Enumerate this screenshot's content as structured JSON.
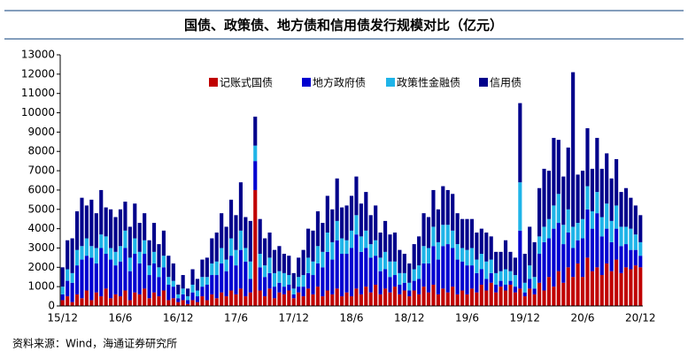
{
  "chart_data": {
    "type": "stacked-bar",
    "title": "国债、政策债、地方债和信用债发行规模对比（亿元）",
    "source": "资料来源：Wind，海通证券研究所",
    "categories": [
      "15/12",
      null,
      null,
      null,
      null,
      null,
      null,
      null,
      null,
      null,
      null,
      null,
      "16/6",
      null,
      null,
      null,
      null,
      null,
      null,
      null,
      null,
      null,
      null,
      null,
      "16/12",
      null,
      null,
      null,
      null,
      null,
      null,
      null,
      null,
      null,
      null,
      null,
      "17/6",
      null,
      null,
      null,
      null,
      null,
      null,
      null,
      null,
      null,
      null,
      null,
      "17/12",
      null,
      null,
      null,
      null,
      null,
      null,
      null,
      null,
      null,
      null,
      null,
      "18/6",
      null,
      null,
      null,
      null,
      null,
      null,
      null,
      null,
      null,
      null,
      null,
      "18/12",
      null,
      null,
      null,
      null,
      null,
      null,
      null,
      null,
      null,
      null,
      null,
      "19/6",
      null,
      null,
      null,
      null,
      null,
      null,
      null,
      null,
      null,
      null,
      null,
      "19/12",
      null,
      null,
      null,
      null,
      null,
      null,
      null,
      null,
      null,
      null,
      null,
      "20/6",
      null,
      null,
      null,
      null,
      null,
      null,
      null,
      null,
      null,
      null,
      null,
      "20/12"
    ],
    "series": [
      {
        "name": "记账式国债",
        "color": "#c00000",
        "values": [
          300,
          500,
          200,
          600,
          400,
          800,
          300,
          700,
          500,
          900,
          400,
          600,
          500,
          800,
          300,
          700,
          600,
          900,
          400,
          700,
          500,
          800,
          300,
          400,
          200,
          300,
          100,
          300,
          200,
          500,
          300,
          600,
          400,
          700,
          500,
          800,
          600,
          900,
          500,
          700,
          6000,
          800,
          500,
          900,
          400,
          700,
          600,
          800,
          400,
          700,
          500,
          900,
          600,
          1000,
          500,
          800,
          600,
          900,
          500,
          700,
          500,
          900,
          600,
          1000,
          700,
          1100,
          600,
          900,
          700,
          1000,
          600,
          800,
          500,
          800,
          600,
          1000,
          700,
          1100,
          600,
          900,
          700,
          1000,
          600,
          800,
          600,
          900,
          700,
          1100,
          800,
          1200,
          700,
          1000,
          800,
          1100,
          700,
          900,
          500,
          900,
          600,
          1200,
          800,
          1500,
          1000,
          1800,
          1200,
          2000,
          1500,
          2200,
          1500,
          2500,
          1800,
          2000,
          1600,
          2200,
          1800,
          2400,
          1700,
          2000,
          1900,
          2100,
          2000
        ]
      },
      {
        "name": "地方政府债",
        "color": "#0000d0",
        "values": [
          300,
          800,
          1000,
          1500,
          2000,
          1800,
          2200,
          1500,
          2500,
          1800,
          2000,
          1500,
          1800,
          2200,
          1500,
          2000,
          1600,
          1800,
          1200,
          1500,
          1000,
          1200,
          800,
          600,
          200,
          300,
          200,
          400,
          300,
          500,
          800,
          1000,
          1200,
          1500,
          1300,
          1800,
          1500,
          2000,
          1800,
          700,
          1500,
          1200,
          1000,
          800,
          600,
          500,
          400,
          300,
          200,
          300,
          500,
          800,
          1000,
          1200,
          1500,
          2000,
          1800,
          2500,
          2200,
          2000,
          2500,
          2800,
          2200,
          2000,
          1800,
          1500,
          1200,
          1000,
          800,
          600,
          500,
          400,
          300,
          500,
          800,
          1200,
          1500,
          2000,
          1800,
          2200,
          2500,
          2000,
          1800,
          1500,
          1500,
          1200,
          1000,
          800,
          600,
          500,
          400,
          300,
          300,
          200,
          300,
          3000,
          200,
          500,
          300,
          1500,
          2500,
          2000,
          3000,
          2500,
          2000,
          1800,
          1500,
          1200,
          2000,
          2500,
          2200,
          2800,
          2000,
          1800,
          1500,
          1600,
          1400,
          1200,
          1000,
          800,
          600
        ]
      },
      {
        "name": "政策性金融债",
        "color": "#1fb4e8",
        "values": [
          400,
          600,
          500,
          800,
          700,
          900,
          600,
          800,
          700,
          900,
          600,
          700,
          800,
          900,
          700,
          800,
          600,
          700,
          500,
          600,
          500,
          600,
          400,
          300,
          200,
          300,
          200,
          400,
          300,
          500,
          400,
          600,
          700,
          800,
          600,
          900,
          800,
          1000,
          700,
          900,
          800,
          700,
          600,
          800,
          700,
          600,
          700,
          500,
          300,
          500,
          600,
          800,
          700,
          900,
          800,
          1000,
          900,
          1000,
          800,
          700,
          900,
          1000,
          800,
          900,
          700,
          800,
          700,
          900,
          800,
          700,
          600,
          500,
          400,
          600,
          700,
          900,
          800,
          1000,
          900,
          1100,
          1000,
          900,
          800,
          700,
          800,
          900,
          700,
          800,
          900,
          700,
          600,
          500,
          800,
          500,
          600,
          2500,
          500,
          700,
          600,
          900,
          800,
          1000,
          1200,
          1500,
          1000,
          1200,
          1100,
          900,
          1000,
          1200,
          900,
          1100,
          1000,
          1300,
          1100,
          1200,
          1000,
          900,
          1100,
          800,
          700
        ]
      },
      {
        "name": "信用债",
        "color": "#00008b",
        "values": [
          1000,
          1500,
          1800,
          2000,
          2500,
          1700,
          2400,
          1800,
          2300,
          1500,
          2000,
          1800,
          1900,
          1500,
          1600,
          1800,
          1500,
          1400,
          1300,
          1500,
          1200,
          1300,
          1100,
          900,
          500,
          700,
          400,
          800,
          600,
          900,
          1000,
          1300,
          1500,
          1800,
          1700,
          2000,
          1800,
          2500,
          1600,
          2100,
          1500,
          1800,
          1400,
          1300,
          1200,
          1300,
          1000,
          1000,
          800,
          1000,
          1300,
          1500,
          1600,
          1800,
          1500,
          1900,
          1700,
          2200,
          1600,
          1800,
          1800,
          2000,
          1700,
          2000,
          1500,
          1800,
          1300,
          1600,
          1400,
          1500,
          1200,
          1000,
          1000,
          1300,
          1500,
          1700,
          1600,
          1900,
          1700,
          2000,
          1800,
          1900,
          1600,
          1500,
          1600,
          1500,
          1400,
          1300,
          1500,
          1200,
          1100,
          1000,
          1500,
          1000,
          900,
          4100,
          1500,
          2000,
          1800,
          2500,
          3000,
          2500,
          3500,
          2800,
          2500,
          3200,
          8000,
          2500,
          2500,
          3000,
          2200,
          2800,
          2500,
          2600,
          2200,
          2400,
          1800,
          2000,
          1600,
          1500,
          1400
        ]
      }
    ],
    "ylim": [
      0,
      13000
    ],
    "yticks": [
      0,
      1000,
      2000,
      3000,
      4000,
      5000,
      6000,
      7000,
      8000,
      9000,
      10000,
      11000,
      12000,
      13000
    ]
  }
}
